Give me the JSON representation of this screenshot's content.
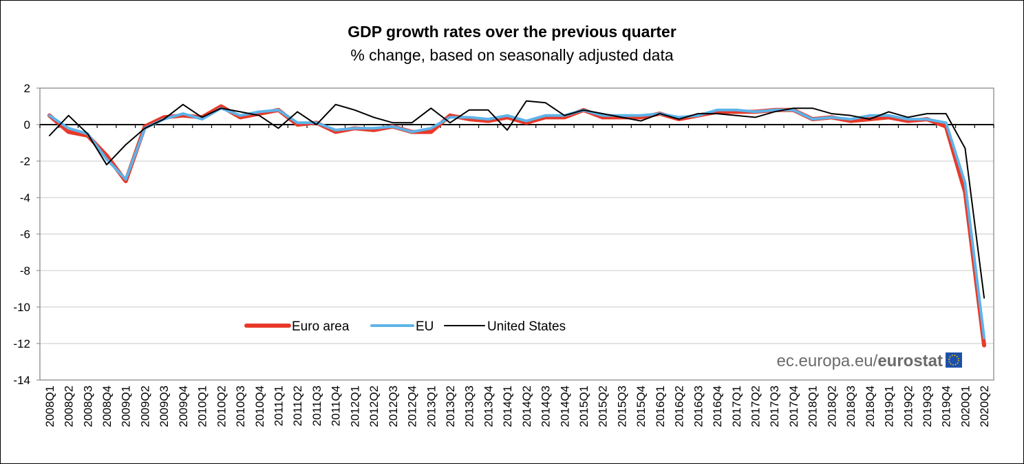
{
  "chart_data": {
    "type": "line",
    "title": "GDP growth rates over the previous quarter",
    "subtitle": "% change, based on seasonally adjusted data",
    "xlabel": "",
    "ylabel": "",
    "ylim": [
      -14,
      2
    ],
    "yticks": [
      2,
      0,
      -2,
      -4,
      -6,
      -8,
      -10,
      -12,
      -14
    ],
    "grid": true,
    "legend_position": "bottom-left-inside",
    "categories": [
      "2008Q1",
      "2008Q2",
      "2008Q3",
      "2008Q4",
      "2009Q1",
      "2009Q2",
      "2009Q3",
      "2009Q4",
      "2010Q1",
      "2010Q2",
      "2010Q3",
      "2010Q4",
      "2011Q1",
      "2011Q2",
      "2011Q3",
      "2011Q4",
      "2012Q1",
      "2012Q2",
      "2012Q3",
      "2012Q4",
      "2013Q1",
      "2013Q2",
      "2013Q3",
      "2013Q4",
      "2014Q1",
      "2014Q2",
      "2014Q3",
      "2014Q4",
      "2015Q1",
      "2015Q2",
      "2015Q3",
      "2015Q4",
      "2016Q1",
      "2016Q2",
      "2016Q3",
      "2016Q4",
      "2017Q1",
      "2017Q2",
      "2017Q3",
      "2017Q4",
      "2018Q1",
      "2018Q2",
      "2018Q3",
      "2018Q4",
      "2019Q1",
      "2019Q2",
      "2019Q3",
      "2019Q4",
      "2020Q1",
      "2020Q2"
    ],
    "series": [
      {
        "name": "Euro area",
        "color": "#e8392a",
        "values": [
          0.5,
          -0.4,
          -0.6,
          -1.7,
          -3.1,
          -0.1,
          0.4,
          0.5,
          0.4,
          1.0,
          0.4,
          0.6,
          0.8,
          0.0,
          0.1,
          -0.4,
          -0.2,
          -0.3,
          -0.1,
          -0.4,
          -0.4,
          0.5,
          0.3,
          0.2,
          0.4,
          0.1,
          0.4,
          0.4,
          0.8,
          0.4,
          0.4,
          0.4,
          0.6,
          0.3,
          0.5,
          0.7,
          0.7,
          0.7,
          0.8,
          0.8,
          0.3,
          0.4,
          0.2,
          0.3,
          0.4,
          0.2,
          0.3,
          -0.1,
          -3.7,
          -12.1
        ]
      },
      {
        "name": "EU",
        "color": "#5eb3e8",
        "values": [
          0.5,
          -0.2,
          -0.5,
          -1.9,
          -3.0,
          -0.2,
          0.3,
          0.6,
          0.3,
          0.9,
          0.5,
          0.7,
          0.8,
          0.1,
          0.1,
          -0.3,
          -0.2,
          -0.2,
          -0.1,
          -0.4,
          -0.2,
          0.4,
          0.4,
          0.3,
          0.5,
          0.2,
          0.5,
          0.5,
          0.8,
          0.5,
          0.5,
          0.5,
          0.6,
          0.4,
          0.5,
          0.8,
          0.8,
          0.7,
          0.8,
          0.8,
          0.3,
          0.4,
          0.3,
          0.5,
          0.5,
          0.3,
          0.3,
          0.1,
          -3.2,
          -11.7
        ]
      },
      {
        "name": "United States",
        "color": "#000000",
        "values": [
          -0.6,
          0.5,
          -0.5,
          -2.2,
          -1.1,
          -0.2,
          0.3,
          1.1,
          0.4,
          0.9,
          0.7,
          0.5,
          -0.2,
          0.7,
          0.0,
          1.1,
          0.8,
          0.4,
          0.1,
          0.1,
          0.9,
          0.1,
          0.8,
          0.8,
          -0.3,
          1.3,
          1.2,
          0.5,
          0.8,
          0.6,
          0.4,
          0.2,
          0.6,
          0.3,
          0.6,
          0.6,
          0.5,
          0.4,
          0.7,
          0.9,
          0.9,
          0.6,
          0.5,
          0.3,
          0.7,
          0.4,
          0.6,
          0.6,
          -1.3,
          -9.5
        ]
      }
    ]
  },
  "credit": {
    "prefix": "ec.europa.eu/",
    "brand": "eurostat"
  }
}
